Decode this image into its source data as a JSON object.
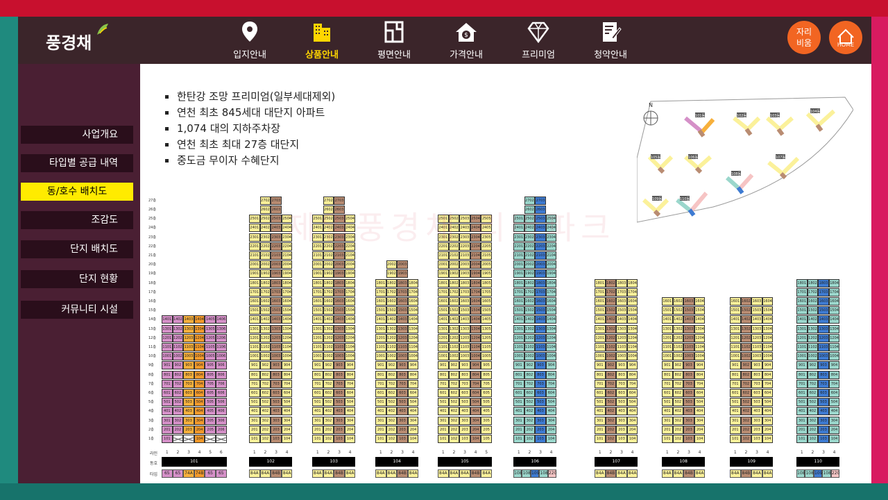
{
  "logo": "풍경채",
  "nav": [
    {
      "label": "입지안내",
      "icon": "location-pin-icon",
      "active": false
    },
    {
      "label": "상품안내",
      "icon": "buildings-icon",
      "active": true
    },
    {
      "label": "평면안내",
      "icon": "floorplan-icon",
      "active": false
    },
    {
      "label": "가격안내",
      "icon": "house-price-icon",
      "active": false
    },
    {
      "label": "프리미엄",
      "icon": "diamond-icon",
      "active": false
    },
    {
      "label": "청약안내",
      "icon": "application-form-icon",
      "active": false
    }
  ],
  "seat_button": [
    "자리",
    "비움"
  ],
  "home_button": "HOME",
  "sidebar": [
    {
      "label": "사업개요",
      "active": false
    },
    {
      "label": "타입별 공급 내역",
      "active": false
    },
    {
      "label": "동/호수 배치도",
      "active": true
    },
    {
      "label": "조감도",
      "active": false
    },
    {
      "label": "단지 배치도",
      "active": false
    },
    {
      "label": "단지 현황",
      "active": false
    },
    {
      "label": "커뮤니티 시설",
      "active": false
    }
  ],
  "features": [
    "한탄강 조망 프리미엄(일부세대제외)",
    "연천 최초 845세대 대단지 아파트",
    "1,074 대의 지하주차장",
    "연천 최초 최대 27층 대단지",
    "중도금 무이자 수혜단지"
  ],
  "watermark": "제일풍경채 리버파크",
  "sitemap": {
    "north": "N",
    "labels": [
      "101동",
      "102동",
      "103동",
      "104동",
      "105동",
      "106동",
      "107동",
      "108동",
      "109동",
      "110동"
    ]
  },
  "grid_labels": {
    "line_row": "라인",
    "bldg_row": "동호",
    "type_row": "타입"
  },
  "colors": {
    "84A": "#fbf19a",
    "84B": "#b98c72",
    "74A": "#f7b03c",
    "74B": "#f39a2b",
    "65": "#d590c8",
    "108": "#9bd7cc",
    "109": "#3e7bd2",
    "220": "#f6c4c4"
  },
  "buildings": [
    {
      "name": "101",
      "floors": 14,
      "lines": 6,
      "types": [
        "65",
        "65",
        "74A",
        "74B",
        "65",
        "65"
      ],
      "ground": [
        1,
        1,
        1,
        1,
        1,
        1
      ],
      "ground_x": [
        false,
        true,
        true,
        false,
        true,
        true
      ]
    },
    {
      "name": "102",
      "floors": 25,
      "lines": 4,
      "top": 27,
      "types": [
        "84A",
        "84A",
        "84B",
        "84A"
      ]
    },
    {
      "name": "103",
      "floors": 25,
      "lines": 4,
      "top": 27,
      "types": [
        "84A",
        "84A",
        "84B",
        "84A"
      ]
    },
    {
      "name": "104",
      "floors": 18,
      "lines": 4,
      "top": 20,
      "types": [
        "84A",
        "84A",
        "84B",
        "84A"
      ]
    },
    {
      "name": "105",
      "floors": 25,
      "lines": 5,
      "types": [
        "84A",
        "84A",
        "84A",
        "84B",
        "84A"
      ]
    },
    {
      "name": "106",
      "floors": 25,
      "lines": 4,
      "top": 27,
      "types": [
        "108",
        "108",
        "109",
        "108",
        "220"
      ]
    },
    {
      "name": "107",
      "floors": 18,
      "lines": 4,
      "types": [
        "84A",
        "84B",
        "84A",
        "84A"
      ]
    },
    {
      "name": "108",
      "floors": 16,
      "lines": 4,
      "types": [
        "84A",
        "84A",
        "84B",
        "84A"
      ]
    },
    {
      "name": "109",
      "floors": 16,
      "lines": 4,
      "types": [
        "84A",
        "84B",
        "84A",
        "84A"
      ]
    },
    {
      "name": "110",
      "floors": 18,
      "lines": 4,
      "types": [
        "108",
        "108",
        "109",
        "108",
        "220"
      ]
    }
  ]
}
